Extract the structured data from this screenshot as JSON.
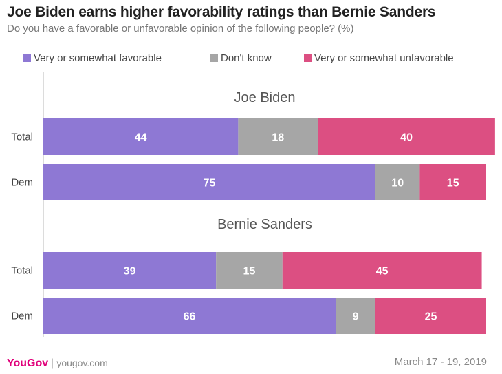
{
  "header": {
    "title": "Joe Biden earns higher favorability ratings than Bernie Sanders",
    "subtitle": "Do you have a favorable or unfavorable opinion of the following people? (%)"
  },
  "colors": {
    "favorable": "#8e78d4",
    "dont_know": "#a6a6a6",
    "unfavorable": "#dc4f82"
  },
  "chart_data": {
    "type": "bar",
    "orientation": "horizontal",
    "stacked": true,
    "legend_position": "top",
    "series": [
      {
        "name": "Very or somewhat favorable",
        "color": "#8e78d4"
      },
      {
        "name": "Don't know",
        "color": "#a6a6a6"
      },
      {
        "name": "Very or somewhat unfavorable",
        "color": "#dc4f82"
      }
    ],
    "groups": [
      {
        "label": "Joe Biden",
        "rows": [
          {
            "label": "Total",
            "values": [
              44,
              18,
              40
            ]
          },
          {
            "label": "Dem",
            "values": [
              75,
              10,
              15
            ]
          }
        ]
      },
      {
        "label": "Bernie Sanders",
        "rows": [
          {
            "label": "Total",
            "values": [
              39,
              15,
              45
            ]
          },
          {
            "label": "Dem",
            "values": [
              66,
              9,
              25
            ]
          }
        ]
      }
    ],
    "xlim": [
      0,
      100
    ],
    "grid": false
  },
  "footer": {
    "logo": "YouGov",
    "separator": "|",
    "url": "yougov.com",
    "date": "March 17 - 19, 2019"
  }
}
